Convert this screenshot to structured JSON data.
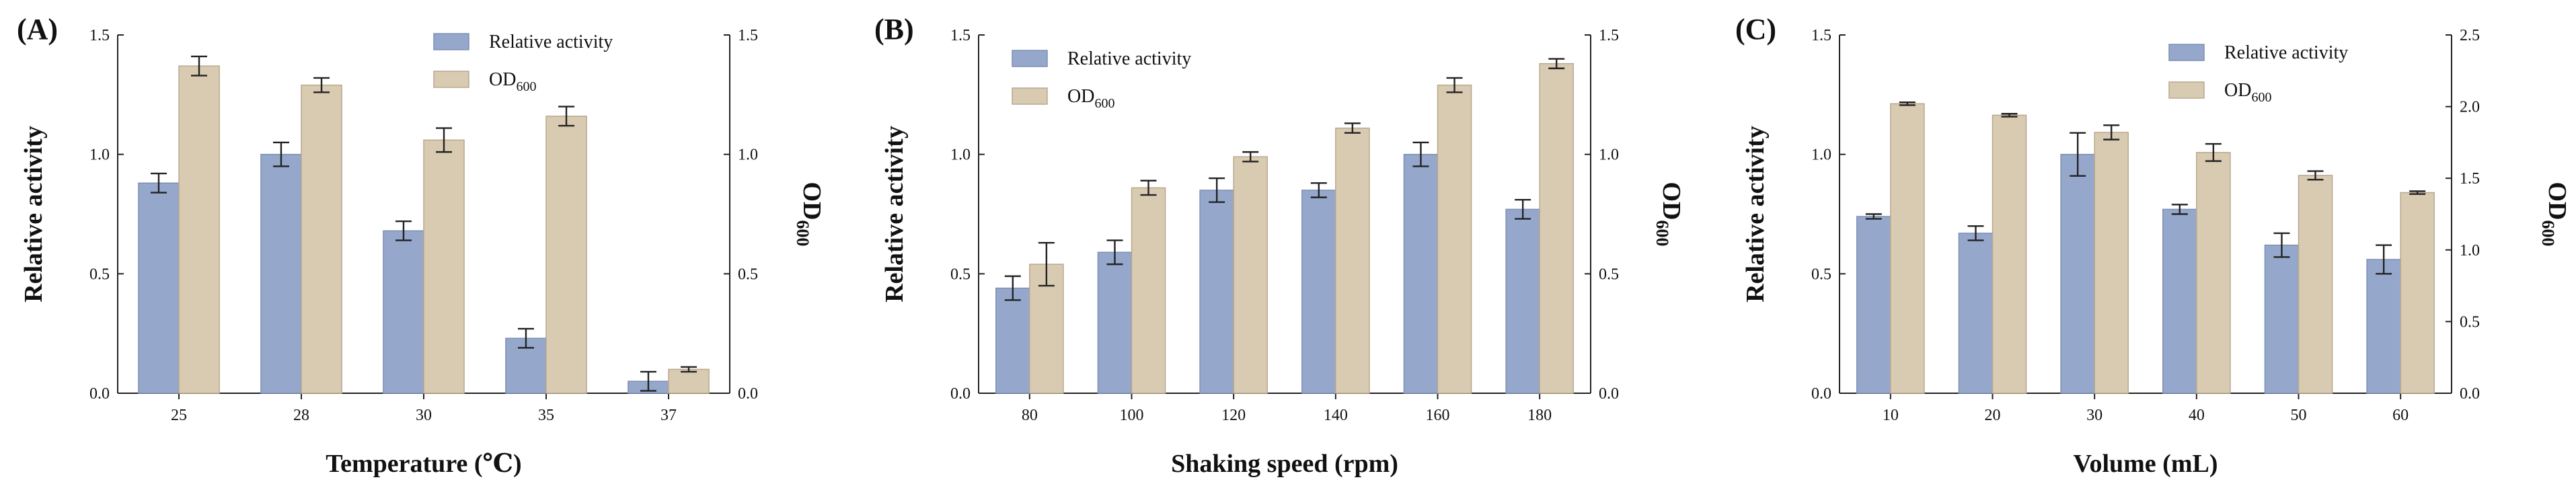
{
  "figure": {
    "legend": {
      "series1": "Relative activity",
      "series2_main": "OD",
      "series2_sub": "600"
    },
    "colors": {
      "series1": "#95a8cc",
      "series1_edge": "#7d8fb4",
      "series2": "#d9cbb2",
      "series2_edge": "#b8a88e"
    }
  },
  "chart_data": [
    {
      "type": "bar",
      "panel_label": "(A)",
      "xlabel": "Temperature (℃)",
      "ylabel_left": "Relative activity",
      "ylabel_right_main": "OD",
      "ylabel_right_sub": "600",
      "categories": [
        "25",
        "28",
        "30",
        "35",
        "37"
      ],
      "ylim_left": [
        0,
        1.5
      ],
      "yticks_left": [
        "0.0",
        "0.5",
        "1.0",
        "1.5"
      ],
      "ylim_right": [
        0,
        1.5
      ],
      "yticks_right": [
        "0.0",
        "0.5",
        "1.0",
        "1.5"
      ],
      "legend_position": "top-right",
      "series": [
        {
          "name": "Relative activity",
          "axis": "left",
          "values": [
            0.88,
            1.0,
            0.68,
            0.23,
            0.05
          ],
          "errors": [
            0.04,
            0.05,
            0.04,
            0.04,
            0.04
          ]
        },
        {
          "name": "OD600",
          "axis": "right",
          "values": [
            1.37,
            1.29,
            1.06,
            1.16,
            0.1
          ],
          "errors": [
            0.04,
            0.03,
            0.05,
            0.04,
            0.01
          ]
        }
      ]
    },
    {
      "type": "bar",
      "panel_label": "(B)",
      "xlabel": "Shaking speed (rpm)",
      "ylabel_left": "Relative activity",
      "ylabel_right_main": "OD",
      "ylabel_right_sub": "600",
      "categories": [
        "80",
        "100",
        "120",
        "140",
        "160",
        "180"
      ],
      "ylim_left": [
        0,
        1.5
      ],
      "yticks_left": [
        "0.0",
        "0.5",
        "1.0",
        "1.5"
      ],
      "ylim_right": [
        0,
        1.5
      ],
      "yticks_right": [
        "0.0",
        "0.5",
        "1.0",
        "1.5"
      ],
      "legend_position": "top-left",
      "series": [
        {
          "name": "Relative activity",
          "axis": "left",
          "values": [
            0.44,
            0.59,
            0.85,
            0.85,
            1.0,
            0.77
          ],
          "errors": [
            0.05,
            0.05,
            0.05,
            0.03,
            0.05,
            0.04
          ]
        },
        {
          "name": "OD600",
          "axis": "right",
          "values": [
            0.54,
            0.86,
            0.99,
            1.11,
            1.29,
            1.38
          ],
          "errors": [
            0.09,
            0.03,
            0.02,
            0.02,
            0.03,
            0.02
          ]
        }
      ]
    },
    {
      "type": "bar",
      "panel_label": "(C)",
      "xlabel": "Volume (mL)",
      "ylabel_left": "Relative activity",
      "ylabel_right_main": "OD",
      "ylabel_right_sub": "600",
      "categories": [
        "10",
        "20",
        "30",
        "40",
        "50",
        "60"
      ],
      "ylim_left": [
        0,
        1.5
      ],
      "yticks_left": [
        "0.0",
        "0.5",
        "1.0",
        "1.5"
      ],
      "ylim_right": [
        0,
        2.5
      ],
      "yticks_right": [
        "0.0",
        "0.5",
        "1.0",
        "1.5",
        "2.0",
        "2.5"
      ],
      "legend_position": "top-right",
      "series": [
        {
          "name": "Relative activity",
          "axis": "left",
          "values": [
            0.74,
            0.67,
            1.0,
            0.77,
            0.62,
            0.56
          ],
          "errors": [
            0.01,
            0.03,
            0.09,
            0.02,
            0.05,
            0.06
          ]
        },
        {
          "name": "OD600",
          "axis": "right",
          "values": [
            2.02,
            1.94,
            1.82,
            1.68,
            1.52,
            1.4
          ],
          "errors": [
            0.01,
            0.01,
            0.05,
            0.06,
            0.03,
            0.01
          ]
        }
      ]
    }
  ]
}
